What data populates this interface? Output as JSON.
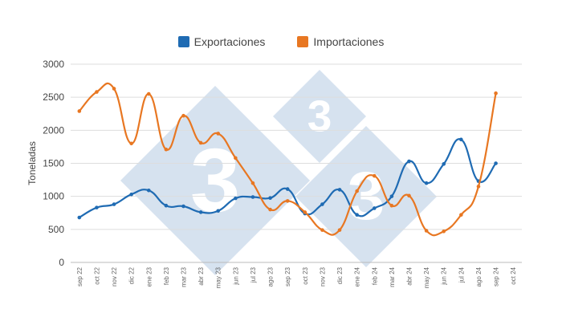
{
  "chart_data": {
    "type": "line",
    "ylabel": "Toneladas",
    "ylim": [
      0,
      3000
    ],
    "yticks": [
      "0",
      "500",
      "1000",
      "1500",
      "2000",
      "2500",
      "3000"
    ],
    "grid": true,
    "legend_position": "top-center",
    "categories": [
      "sep 22",
      "oct 22",
      "nov 22",
      "dic 22",
      "ene 23",
      "feb 23",
      "mar 23",
      "abr 23",
      "may 23",
      "jun 23",
      "jul 23",
      "ago 23",
      "sep 23",
      "oct 23",
      "nov 23",
      "dic 23",
      "ene 24",
      "feb 24",
      "mar 24",
      "abr 24",
      "may 24",
      "jun 24",
      "jul 24",
      "ago 24",
      "sep 24",
      "oct 24"
    ],
    "series": [
      {
        "name": "Exportaciones",
        "color": "#1f6bb3",
        "values": [
          680,
          830,
          880,
          1030,
          1090,
          860,
          850,
          760,
          780,
          970,
          990,
          975,
          1110,
          740,
          880,
          1100,
          720,
          820,
          1000,
          1530,
          1200,
          1490,
          1860,
          1230,
          1500,
          null
        ]
      },
      {
        "name": "Importaciones",
        "color": "#e87722",
        "values": [
          2290,
          2580,
          2630,
          1800,
          2550,
          1710,
          2220,
          1810,
          1950,
          1580,
          1200,
          800,
          930,
          760,
          490,
          490,
          1080,
          1310,
          860,
          1010,
          480,
          470,
          720,
          1150,
          2560,
          null
        ]
      }
    ],
    "watermark": "3"
  }
}
